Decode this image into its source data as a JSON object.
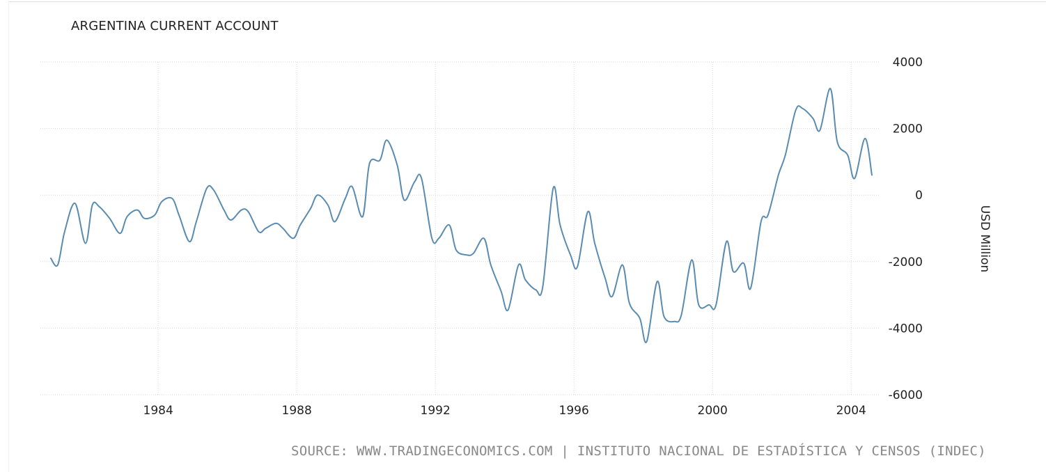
{
  "chart_data": {
    "type": "line",
    "title": "ARGENTINA CURRENT ACCOUNT",
    "ylabel": "USD Million",
    "xlabel": "",
    "ylim": [
      -6000,
      4000
    ],
    "xlim": [
      1980.6,
      2004.8
    ],
    "yticks": [
      4000,
      2000,
      0,
      -2000,
      -4000,
      -6000
    ],
    "ytick_labels": [
      "4000",
      "2000",
      "0",
      "-2000",
      "-4000",
      "-6000"
    ],
    "xticks": [
      1984,
      1988,
      1992,
      1996,
      2000,
      2004
    ],
    "xtick_labels": [
      "1984",
      "1988",
      "1992",
      "1996",
      "2000",
      "2004"
    ],
    "grid": true,
    "line_color": "#5a8bb0",
    "series": [
      {
        "name": "",
        "x": [
          1980.9,
          1981.1,
          1981.3,
          1981.6,
          1981.9,
          1982.1,
          1982.3,
          1982.6,
          1982.9,
          1983.1,
          1983.4,
          1983.6,
          1983.9,
          1984.1,
          1984.4,
          1984.6,
          1984.9,
          1985.1,
          1985.4,
          1985.6,
          1985.9,
          1986.1,
          1986.4,
          1986.6,
          1986.9,
          1987.1,
          1987.4,
          1987.6,
          1987.9,
          1988.1,
          1988.4,
          1988.6,
          1988.9,
          1989.1,
          1989.4,
          1989.6,
          1989.9,
          1990.1,
          1990.4,
          1990.6,
          1990.9,
          1991.1,
          1991.4,
          1991.6,
          1991.9,
          1992.1,
          1992.4,
          1992.6,
          1992.9,
          1993.1,
          1993.4,
          1993.6,
          1993.9,
          1994.1,
          1994.4,
          1994.6,
          1994.9,
          1995.1,
          1995.4,
          1995.6,
          1995.9,
          1996.1,
          1996.4,
          1996.6,
          1996.9,
          1997.1,
          1997.4,
          1997.6,
          1997.9,
          1998.1,
          1998.4,
          1998.6,
          1998.9,
          1999.1,
          1999.4,
          1999.6,
          1999.9,
          2000.1,
          2000.4,
          2000.6,
          2000.9,
          2001.1,
          2001.4,
          2001.6,
          2001.9,
          2002.1,
          2002.4,
          2002.6,
          2002.9,
          2003.1,
          2003.4,
          2003.6,
          2003.9,
          2004.1,
          2004.4,
          2004.6
        ],
        "values": [
          -1900,
          -2100,
          -1100,
          -250,
          -1450,
          -300,
          -350,
          -700,
          -1150,
          -650,
          -450,
          -700,
          -600,
          -200,
          -100,
          -600,
          -1400,
          -800,
          200,
          150,
          -450,
          -750,
          -450,
          -500,
          -1100,
          -1000,
          -850,
          -1000,
          -1300,
          -900,
          -400,
          0,
          -300,
          -800,
          -100,
          250,
          -650,
          950,
          1050,
          1650,
          900,
          -150,
          400,
          500,
          -1300,
          -1300,
          -900,
          -1650,
          -1800,
          -1750,
          -1300,
          -2100,
          -2900,
          -3450,
          -2100,
          -2550,
          -2850,
          -2750,
          200,
          -900,
          -1800,
          -2150,
          -500,
          -1450,
          -2500,
          -3050,
          -2100,
          -3250,
          -3700,
          -4400,
          -2600,
          -3650,
          -3800,
          -3600,
          -1950,
          -3300,
          -3300,
          -3300,
          -1400,
          -2300,
          -2050,
          -2800,
          -800,
          -600,
          600,
          1200,
          2550,
          2600,
          2300,
          1950,
          3200,
          1600,
          1200,
          500,
          1700,
          600
        ]
      }
    ]
  },
  "source": "SOURCE: WWW.TRADINGECONOMICS.COM | INSTITUTO NACIONAL DE ESTADÍSTICA Y CENSOS (INDEC)"
}
